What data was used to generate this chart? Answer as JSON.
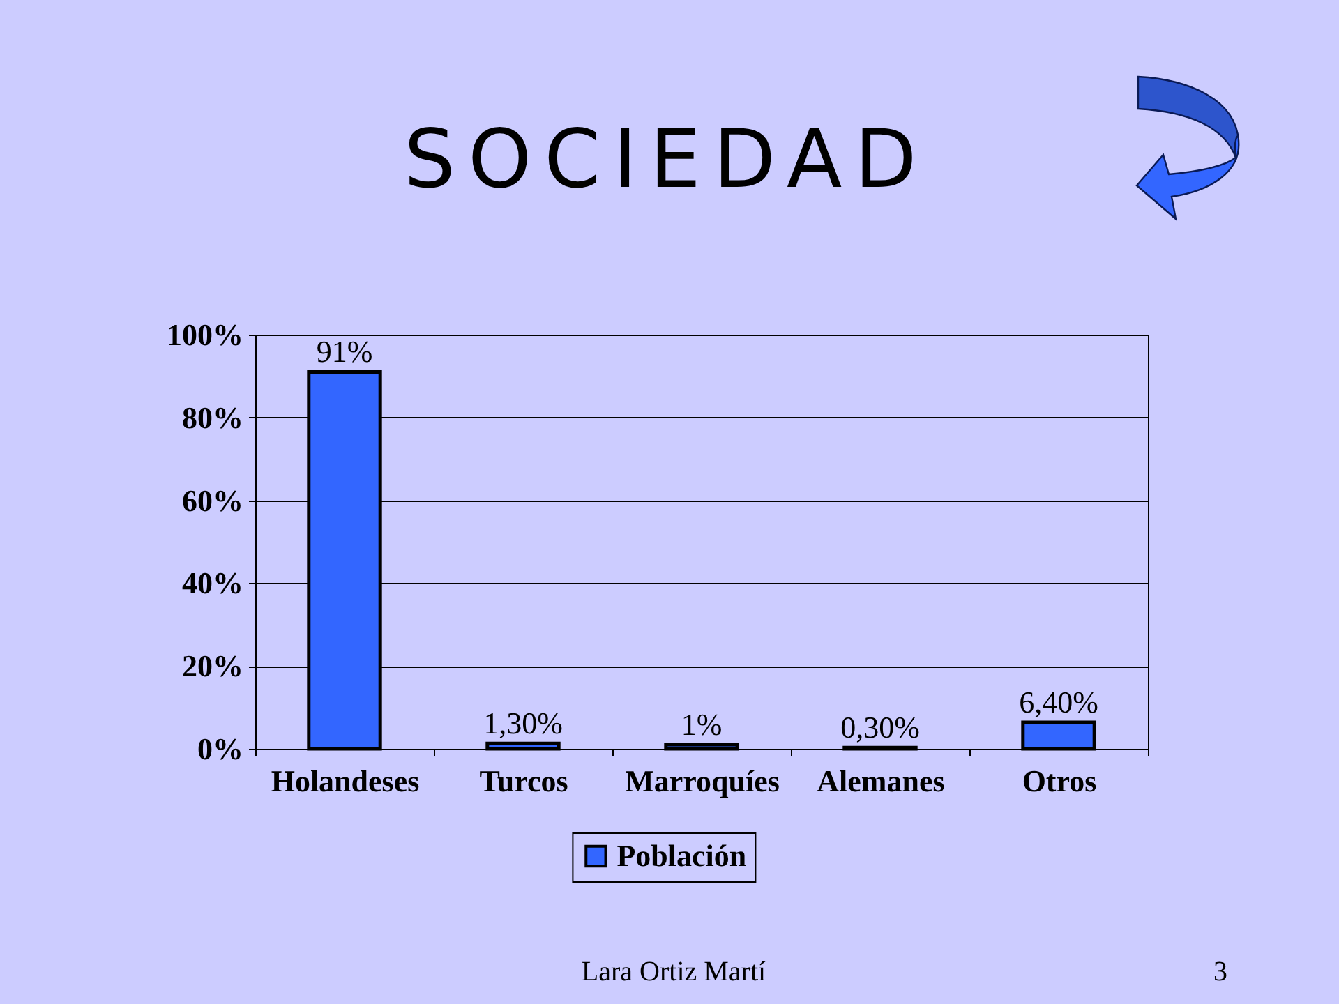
{
  "chart_data": {
    "type": "bar",
    "title": "SOCIEDAD",
    "categories": [
      "Holandeses",
      "Turcos",
      "Marroquíes",
      "Alemanes",
      "Otros"
    ],
    "series": [
      {
        "name": "Población",
        "color": "#3366ff",
        "values": [
          91,
          1.3,
          1,
          0.3,
          6.4
        ],
        "value_labels": [
          "91%",
          "1,30%",
          "1%",
          "0,30%",
          "6,40%"
        ]
      }
    ],
    "ylim": [
      0,
      100
    ],
    "yticks": [
      {
        "value": 0,
        "label": "0%"
      },
      {
        "value": 20,
        "label": "20%"
      },
      {
        "value": 40,
        "label": "40%"
      },
      {
        "value": 60,
        "label": "60%"
      },
      {
        "value": 80,
        "label": "80%"
      },
      {
        "value": 100,
        "label": "100%"
      }
    ],
    "grid": "y",
    "legend": "bottom",
    "annotations": [
      "Lara Ortiz Martí",
      "3"
    ]
  }
}
